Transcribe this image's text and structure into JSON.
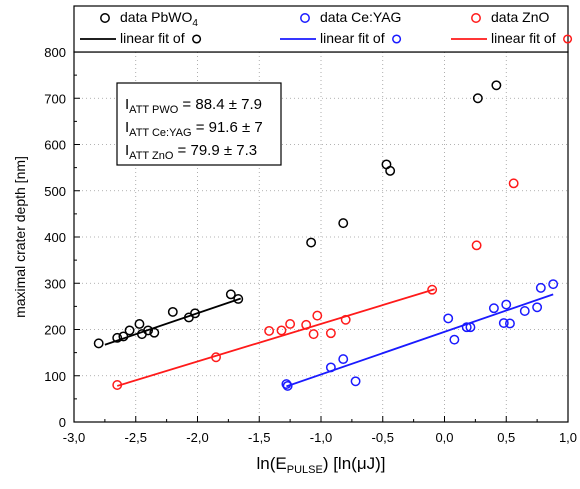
{
  "chart_data": {
    "type": "scatter",
    "xlabel": {
      "main": "ln(E",
      "sub": "PULSE",
      "rest": ") [ln(μJ)]"
    },
    "ylabel": "maximal crater depth [nm]",
    "xlim": [
      -3.0,
      1.0
    ],
    "ylim": [
      0,
      800
    ],
    "xticks": [
      -3.0,
      -2.5,
      -2.0,
      -1.5,
      -1.0,
      -0.5,
      0.0,
      0.5,
      1.0
    ],
    "xtick_labels": [
      "-3,0",
      "-2,5",
      "-2,0",
      "-1,5",
      "-1,0",
      "-0,5",
      "0,0",
      "0,5",
      "1,0"
    ],
    "yticks": [
      0,
      100,
      200,
      300,
      400,
      500,
      600,
      700,
      800
    ],
    "ytick_labels": [
      "0",
      "100",
      "200",
      "300",
      "400",
      "500",
      "600",
      "700",
      "800"
    ],
    "grid": true,
    "legend_position": "top",
    "series": [
      {
        "name": "data PbWO",
        "name_sub": "4",
        "fit_label": "linear fit of",
        "color": "#000000",
        "x": [
          -2.8,
          -2.65,
          -2.6,
          -2.55,
          -2.47,
          -2.45,
          -2.4,
          -2.35,
          -2.2,
          -2.07,
          -2.02,
          -1.73,
          -1.67,
          -1.08,
          -0.82,
          -0.47,
          -0.44,
          0.27,
          0.42
        ],
        "y": [
          170,
          182,
          185,
          198,
          212,
          190,
          198,
          193,
          238,
          226,
          235,
          276,
          266,
          388,
          430,
          557,
          543,
          700,
          728
        ],
        "fit": {
          "x": [
            -2.75,
            -1.65
          ],
          "y": [
            167,
            267
          ]
        }
      },
      {
        "name": "data Ce:YAG",
        "fit_label": "linear fit of",
        "color": "#1a1aff",
        "x": [
          -1.28,
          -1.27,
          -0.92,
          -0.82,
          -0.72,
          0.03,
          0.08,
          0.18,
          0.21,
          0.4,
          0.48,
          0.5,
          0.53,
          0.65,
          0.75,
          0.78,
          0.88
        ],
        "y": [
          82,
          78,
          118,
          136,
          88,
          224,
          178,
          205,
          205,
          246,
          214,
          254,
          213,
          240,
          248,
          290,
          298
        ],
        "fit": {
          "x": [
            -1.28,
            0.88
          ],
          "y": [
            77,
            276
          ]
        }
      },
      {
        "name": "data ZnO",
        "fit_label": "linear fit of",
        "color": "#ff1a1a",
        "x": [
          -2.65,
          -1.85,
          -1.42,
          -1.32,
          -1.25,
          -1.12,
          -1.06,
          -1.03,
          -0.92,
          -0.8,
          -0.1,
          0.26,
          0.56
        ],
        "y": [
          80,
          140,
          197,
          198,
          212,
          210,
          190,
          230,
          192,
          221,
          286,
          382,
          516
        ],
        "fit": {
          "x": [
            -2.65,
            -0.08
          ],
          "y": [
            78,
            287
          ]
        }
      }
    ],
    "annotations": [
      {
        "main": "I",
        "sub": "ATT PWO",
        "value": " = 88.4 ± 7.9"
      },
      {
        "main": "I",
        "sub": "ATT Ce:YAG",
        "value": " = 91.6 ± 7"
      },
      {
        "main": "I",
        "sub": "ATT ZnO",
        "value": " = 79.9 ± 7.3"
      }
    ]
  }
}
